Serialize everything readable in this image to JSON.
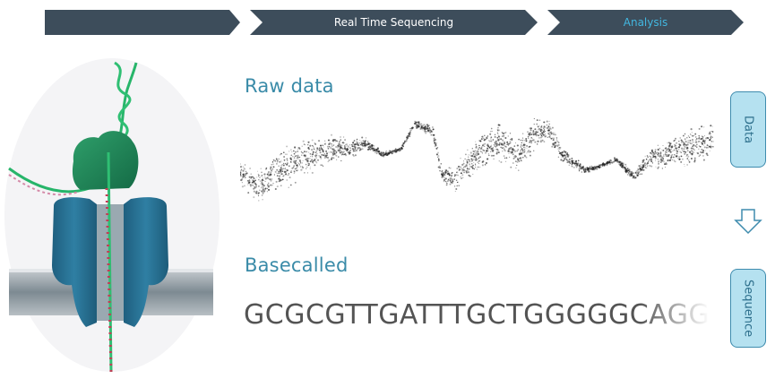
{
  "steps": [
    {
      "label": ""
    },
    {
      "label": "Real Time Sequencing"
    },
    {
      "label": "Analysis"
    }
  ],
  "colors": {
    "step_fill": "#3d4d5b",
    "step_text": "#ffffff",
    "active_step_text": "#42b7e0",
    "title": "#3a8ba8",
    "button_fill": "#b5e1f0",
    "button_border": "#3f8cae"
  },
  "raw_data": {
    "title": "Raw data"
  },
  "basecalled": {
    "title": "Basecalled",
    "sequence": "GCGCGTTGATTTGCTGGGGGCAGG"
  },
  "side_panel": {
    "data_label": "Data",
    "arrow_icon": "arrow-down-icon",
    "sequence_label": "Sequence"
  }
}
